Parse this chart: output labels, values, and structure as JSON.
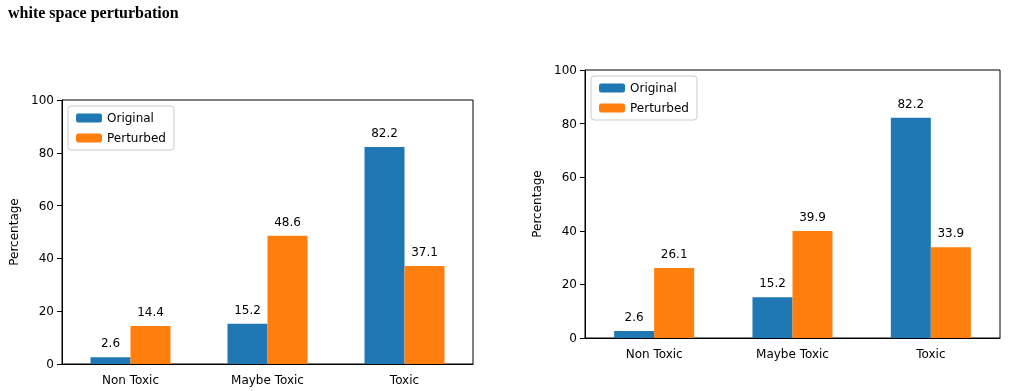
{
  "chart_data": [
    {
      "type": "bar",
      "title": "white space perturbation",
      "categories": [
        "Non Toxic",
        "Maybe Toxic",
        "Toxic"
      ],
      "ylabel": "Percentage",
      "ylim": [
        0,
        100
      ],
      "yticks": [
        0,
        20,
        40,
        60,
        80,
        100
      ],
      "data_labels": true,
      "legend": "top left",
      "grid": false,
      "series": [
        {
          "name": "Original",
          "color": "#1f77b4",
          "values": [
            2.6,
            15.2,
            82.2
          ]
        },
        {
          "name": "Perturbed",
          "color": "#ff7f0e",
          "values": [
            14.4,
            48.6,
            37.1
          ]
        }
      ]
    },
    {
      "type": "bar",
      "categories": [
        "Non Toxic",
        "Maybe Toxic",
        "Toxic"
      ],
      "ylabel": "Percentage",
      "ylim": [
        0,
        100
      ],
      "yticks": [
        0,
        20,
        40,
        60,
        80,
        100
      ],
      "data_labels": true,
      "legend": "top left",
      "grid": false,
      "series": [
        {
          "name": "Original",
          "color": "#1f77b4",
          "values": [
            2.6,
            15.2,
            82.2
          ]
        },
        {
          "name": "Perturbed",
          "color": "#ff7f0e",
          "values": [
            26.1,
            39.9,
            33.9
          ]
        }
      ]
    }
  ]
}
